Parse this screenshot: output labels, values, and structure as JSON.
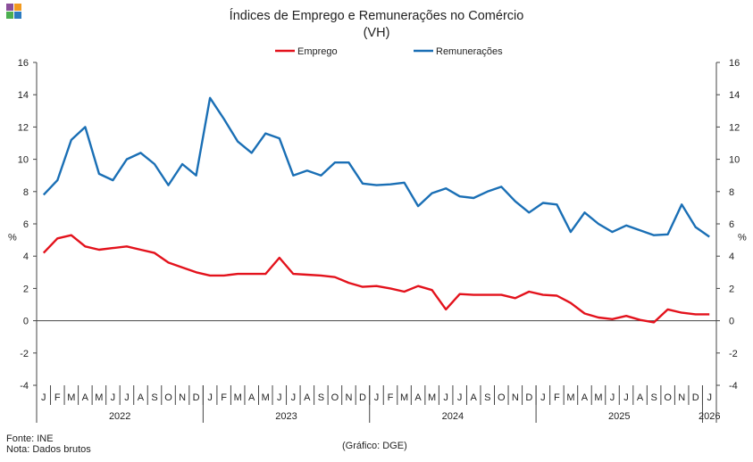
{
  "title": "Índices de Emprego e Remunerações no Comércio",
  "subtitle": "(VH)",
  "footer": {
    "source": "Fonte: INE",
    "note": "Nota: Dados brutos",
    "credit": "(Gráfico: DGE)"
  },
  "chart_data": {
    "type": "line",
    "ylabel_left": "%",
    "ylabel_right": "%",
    "ylim": [
      -4,
      16
    ],
    "yticks": [
      -4,
      -2,
      0,
      2,
      4,
      6,
      8,
      10,
      12,
      14,
      16
    ],
    "legend_position": "top-center",
    "x": [
      "J",
      "F",
      "M",
      "A",
      "M",
      "J",
      "J",
      "A",
      "S",
      "O",
      "N",
      "D",
      "J",
      "F",
      "M",
      "A",
      "M",
      "J",
      "J",
      "A",
      "S",
      "O",
      "N",
      "D",
      "J",
      "F",
      "M",
      "A",
      "M",
      "J",
      "J",
      "A",
      "S",
      "O",
      "N",
      "D",
      "J",
      "F",
      "M",
      "A",
      "M",
      "J",
      "J",
      "A",
      "S",
      "O",
      "N",
      "D",
      "J"
    ],
    "years": [
      {
        "label": "2022",
        "start": 0,
        "count": 12
      },
      {
        "label": "2023",
        "start": 12,
        "count": 12
      },
      {
        "label": "2024",
        "start": 24,
        "count": 12
      },
      {
        "label": "2025",
        "start": 36,
        "count": 12
      },
      {
        "label": "2026",
        "start": 48,
        "count": 1
      }
    ],
    "series": [
      {
        "name": "Emprego",
        "color": "#e3121c",
        "values": [
          4.2,
          5.1,
          5.3,
          4.6,
          4.4,
          4.5,
          4.6,
          4.4,
          4.2,
          3.6,
          3.3,
          3.0,
          2.8,
          2.8,
          2.9,
          2.9,
          2.9,
          3.9,
          2.9,
          2.85,
          2.8,
          2.7,
          2.35,
          2.1,
          2.15,
          2.0,
          1.8,
          2.15,
          1.9,
          0.7,
          1.65,
          1.6,
          1.6,
          1.6,
          1.4,
          1.8,
          1.6,
          1.55,
          1.1,
          0.45,
          0.2,
          0.1,
          0.3,
          0.05,
          -0.1,
          0.7,
          0.5,
          0.4,
          0.4
        ]
      },
      {
        "name": "Remunerações",
        "color": "#1a6fb5",
        "values": [
          7.8,
          8.7,
          11.2,
          12.0,
          9.1,
          8.7,
          10.0,
          10.4,
          9.7,
          8.4,
          9.7,
          9.0,
          13.8,
          12.5,
          11.1,
          10.4,
          11.6,
          11.3,
          9.0,
          9.3,
          9.0,
          9.8,
          9.8,
          8.5,
          8.4,
          8.45,
          8.55,
          7.1,
          7.9,
          8.2,
          7.7,
          7.6,
          8.0,
          8.3,
          7.4,
          6.7,
          7.3,
          7.2,
          5.5,
          6.7,
          6.0,
          5.5,
          5.9,
          5.6,
          5.3,
          5.35,
          7.2,
          5.8,
          5.2
        ]
      }
    ]
  }
}
